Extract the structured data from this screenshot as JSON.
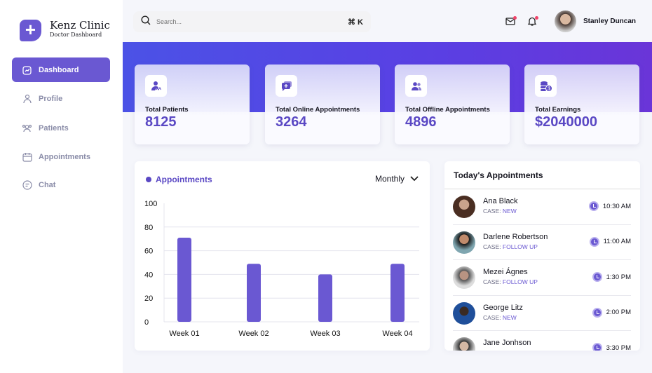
{
  "brand": {
    "name": "Kenz Clinic",
    "subtitle": "Doctor Dashboard"
  },
  "sidebar": {
    "items": [
      {
        "label": "Dashboard",
        "icon": "chart-icon",
        "active": true
      },
      {
        "label": "Profile",
        "icon": "user-icon"
      },
      {
        "label": "Patients",
        "icon": "users-icon"
      },
      {
        "label": "Appointments",
        "icon": "calendar-icon"
      },
      {
        "label": "Chat",
        "icon": "chat-icon"
      }
    ]
  },
  "header": {
    "search_placeholder": "Search...",
    "shortcut": "⌘ K",
    "user": "Stanley Duncan"
  },
  "stats": [
    {
      "label": "Total Patients",
      "value": "8125",
      "icon": "patient-icon"
    },
    {
      "label": "Total Online Appointments",
      "value": "3264",
      "icon": "chat-plus-icon"
    },
    {
      "label": "Total Offline Appointments",
      "value": "4896",
      "icon": "group-icon"
    },
    {
      "label": "Total Earnings",
      "value": "$2040000",
      "icon": "coins-icon"
    }
  ],
  "colors": {
    "accent": "#6a58d2",
    "banner_start": "#4b52e6",
    "banner_end": "#6a35d8"
  },
  "chart_data": {
    "type": "bar",
    "title": "Appointments",
    "period": "Monthly",
    "categories": [
      "Week 01",
      "Week 02",
      "Week 03",
      "Week 04"
    ],
    "values": [
      71,
      49,
      40,
      49
    ],
    "ylim": [
      0,
      100
    ],
    "yticks": [
      0,
      20,
      40,
      60,
      80,
      100
    ],
    "grid": true,
    "color": "#6a58d2"
  },
  "appointments": {
    "title": "Today's Appointments",
    "case_prefix": "CASE:",
    "items": [
      {
        "name": "Ana Black",
        "case": "NEW",
        "time": "10:30 AM"
      },
      {
        "name": "Darlene Robertson",
        "case": "FOLLOW UP",
        "time": "11:00 AM"
      },
      {
        "name": "Mezei Ágnes",
        "case": "FOLLOW UP",
        "time": "1:30 PM"
      },
      {
        "name": "George Litz",
        "case": "NEW",
        "time": "2:00 PM"
      },
      {
        "name": "Jane Jonhson",
        "case": "",
        "time": "3:30 PM"
      }
    ]
  }
}
